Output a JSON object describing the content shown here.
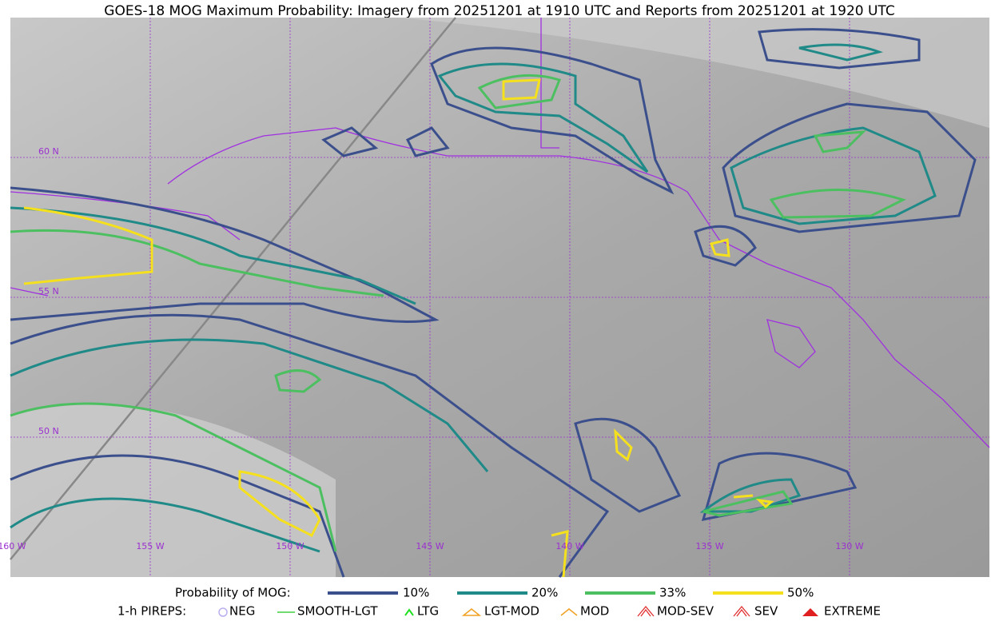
{
  "header": {
    "title": "GOES-18 MOG Maximum Probability: Imagery from 20251201 at 1910 UTC and Reports from 20251201 at 1920 UTC"
  },
  "map": {
    "lat_labels": [
      "60 N",
      "55 N",
      "50 N"
    ],
    "lon_labels": [
      "160 W",
      "155 W",
      "150 W",
      "145 W",
      "140 W",
      "135 W",
      "130 W"
    ]
  },
  "legend": {
    "probability_title": "Probability of MOG:",
    "probability_levels": [
      "10%",
      "20%",
      "33%",
      "50%"
    ],
    "pireps_title": "1-h PIREPS:",
    "pireps": [
      "NEG",
      "SMOOTH-LGT",
      "LTG",
      "LGT-MOD",
      "MOD",
      "MOD-SEV",
      "SEV",
      "EXTREME"
    ]
  }
}
